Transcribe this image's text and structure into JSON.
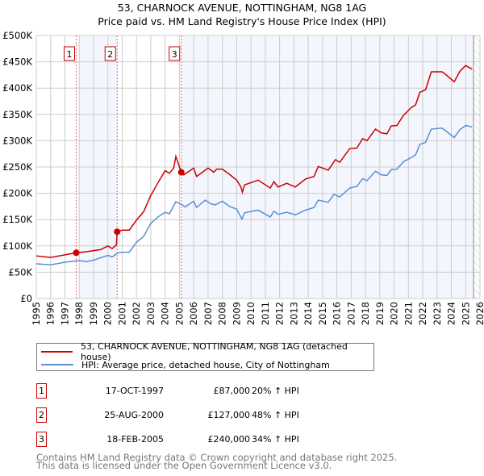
{
  "chart_data": {
    "type": "line",
    "title": "53, CHARNOCK AVENUE, NOTTINGHAM, NG8 1AG",
    "subtitle": "Price paid vs. HM Land Registry's House Price Index (HPI)",
    "xlim": [
      1995,
      2026
    ],
    "ylim": [
      0,
      500000
    ],
    "x_ticks": [
      "1995",
      "1996",
      "1997",
      "1998",
      "1999",
      "2000",
      "2001",
      "2002",
      "2003",
      "2004",
      "2005",
      "2006",
      "2007",
      "2008",
      "2009",
      "2010",
      "2011",
      "2012",
      "2013",
      "2014",
      "2015",
      "2016",
      "2017",
      "2018",
      "2019",
      "2020",
      "2021",
      "2022",
      "2023",
      "2024",
      "2025",
      "2026"
    ],
    "y_ticks": [
      {
        "v": 0,
        "l": "£0"
      },
      {
        "v": 50000,
        "l": "£50K"
      },
      {
        "v": 100000,
        "l": "£100K"
      },
      {
        "v": 150000,
        "l": "£150K"
      },
      {
        "v": 200000,
        "l": "£200K"
      },
      {
        "v": 250000,
        "l": "£250K"
      },
      {
        "v": 300000,
        "l": "£300K"
      },
      {
        "v": 350000,
        "l": "£350K"
      },
      {
        "v": 400000,
        "l": "£400K"
      },
      {
        "v": 450000,
        "l": "£450K"
      },
      {
        "v": 500000,
        "l": "£500K"
      }
    ],
    "grid": true,
    "series": [
      {
        "name": "53, CHARNOCK AVENUE, NOTTINGHAM, NG8 1AG (detached house)",
        "color": "#cc0000",
        "x": [
          1995,
          1996,
          1997,
          1997.79,
          1998.5,
          1999.5,
          2000,
          2000.3,
          2000.6,
          2000.65,
          2001,
          2001.5,
          2002,
          2002.5,
          2003,
          2003.5,
          2004,
          2004.3,
          2004.6,
          2004.75,
          2005.13,
          2005.3,
          2006,
          2006.2,
          2007,
          2007.4,
          2007.6,
          2008,
          2008.5,
          2009,
          2009.3,
          2009.4,
          2009.55,
          2010.5,
          2011.35,
          2011.6,
          2011.9,
          2012.5,
          2013.1,
          2013.8,
          2014.4,
          2014.7,
          2015.4,
          2015.9,
          2016.2,
          2016.9,
          2017.4,
          2017.8,
          2018.1,
          2018.7,
          2019.1,
          2019.5,
          2019.8,
          2020.2,
          2020.65,
          2021.2,
          2021.5,
          2021.8,
          2022.2,
          2022.6,
          2023.35,
          2023.6,
          2024.2,
          2024.6,
          2025,
          2025.45
        ],
        "y": [
          81000,
          78000,
          83000,
          87000,
          89000,
          93000,
          100000,
          95000,
          102000,
          127000,
          130000,
          130000,
          149000,
          165000,
          196000,
          220000,
          243000,
          238000,
          248000,
          270000,
          240000,
          235000,
          248000,
          232000,
          248000,
          240000,
          246000,
          246000,
          236000,
          225000,
          212000,
          202000,
          216000,
          225000,
          210000,
          222000,
          212000,
          219000,
          212000,
          227000,
          232000,
          251000,
          244000,
          264000,
          259000,
          285000,
          286000,
          304000,
          300000,
          322000,
          315000,
          313000,
          328000,
          329000,
          348000,
          363000,
          368000,
          392000,
          397000,
          431000,
          431000,
          426000,
          412000,
          432000,
          443000,
          436000
        ]
      },
      {
        "name": "HPI: Average price, detached house, City of Nottingham",
        "color": "#5b8fd4",
        "x": [
          1995,
          1996,
          1997,
          1998,
          1998.5,
          1999,
          2000,
          2000.3,
          2000.65,
          2001,
          2001.5,
          2002,
          2002.5,
          2003,
          2003.5,
          2004,
          2004.3,
          2004.75,
          2005.2,
          2005.4,
          2006,
          2006.2,
          2006.8,
          2007.2,
          2007.5,
          2008,
          2008.5,
          2009,
          2009.37,
          2009.55,
          2010.5,
          2011.35,
          2011.6,
          2011.9,
          2012.5,
          2013.1,
          2013.8,
          2014.4,
          2014.7,
          2015.4,
          2015.8,
          2016.2,
          2016.9,
          2017.4,
          2017.8,
          2018.1,
          2018.7,
          2019.1,
          2019.5,
          2019.8,
          2020.2,
          2020.65,
          2021.2,
          2021.5,
          2021.8,
          2022.2,
          2022.6,
          2023.35,
          2023.6,
          2024.2,
          2024.6,
          2025,
          2025.45
        ],
        "y": [
          66000,
          64000,
          69000,
          72000,
          70000,
          73000,
          82000,
          79000,
          86000,
          88000,
          88000,
          107000,
          118000,
          143000,
          155000,
          164000,
          161000,
          184000,
          178000,
          174000,
          185000,
          173000,
          187000,
          180000,
          178000,
          185000,
          175000,
          170000,
          151000,
          163000,
          168000,
          155000,
          166000,
          160000,
          164000,
          159000,
          168000,
          173000,
          187000,
          183000,
          198000,
          193000,
          210000,
          213000,
          228000,
          224000,
          242000,
          235000,
          234000,
          245000,
          246000,
          260000,
          268000,
          273000,
          293000,
          297000,
          322000,
          324000,
          319000,
          306000,
          321000,
          329000,
          326000
        ]
      }
    ],
    "sales": [
      {
        "n": "1",
        "x": 1997.79,
        "date": "17-OCT-1997",
        "price_label": "£87,000",
        "price": 87000,
        "hpi": "20% ↑ HPI"
      },
      {
        "n": "2",
        "x": 2000.65,
        "date": "25-AUG-2000",
        "price_label": "£127,000",
        "price": 127000,
        "hpi": "48% ↑ HPI"
      },
      {
        "n": "3",
        "x": 2005.13,
        "date": "18-FEB-2005",
        "price_label": "£240,000",
        "price": 240000,
        "hpi": "34% ↑ HPI"
      }
    ],
    "legend_placement": "below"
  },
  "footer": {
    "line1": "Contains HM Land Registry data © Crown copyright and database right 2025.",
    "line2": "This data is licensed under the Open Government Licence v3.0."
  }
}
